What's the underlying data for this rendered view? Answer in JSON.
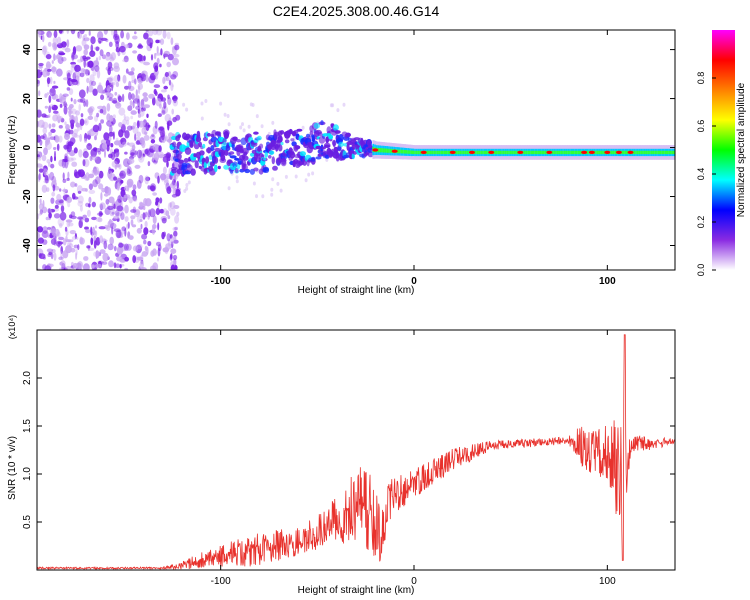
{
  "title": "C2E4.2025.308.00.46.G14",
  "chart_data": [
    {
      "type": "heatmap",
      "name": "spectrogram",
      "xlabel": "Height of straight line (km)",
      "ylabel": "Frequency (Hz)",
      "xlim": [
        -195,
        135
      ],
      "ylim": [
        -50,
        48
      ],
      "xticks": [
        -100,
        0,
        100
      ],
      "yticks": [
        -40,
        -20,
        0,
        20,
        40
      ],
      "colorbar": {
        "label": "Normalized spectral amplitude",
        "range": [
          0,
          1
        ],
        "ticks": [
          "0.0",
          "0.2",
          "0.4",
          "0.6",
          "0.8"
        ],
        "colors": [
          "#ffffff",
          "#8a2be2",
          "#0000ff",
          "#00ffff",
          "#00ff00",
          "#ffff00",
          "#ff8000",
          "#ff0000",
          "#ff00ff"
        ]
      },
      "signal": [
        {
          "x": -120,
          "center": -3,
          "width": 8
        },
        {
          "x": -100,
          "center": -2,
          "width": 8
        },
        {
          "x": -80,
          "center": -2,
          "width": 8
        },
        {
          "x": -60,
          "center": 0,
          "width": 7
        },
        {
          "x": -45,
          "center": 3,
          "width": 8
        },
        {
          "x": -35,
          "center": 1,
          "width": 5
        },
        {
          "x": -20,
          "center": -1,
          "width": 2
        },
        {
          "x": 0,
          "center": -2,
          "width": 1.5
        },
        {
          "x": 50,
          "center": -2,
          "width": 1.5
        },
        {
          "x": 100,
          "center": -2,
          "width": 1.5
        },
        {
          "x": 135,
          "center": -2,
          "width": 1.5
        }
      ]
    },
    {
      "type": "line",
      "name": "snr",
      "xlabel": "Height of straight line (km)",
      "ylabel": "SNR (10 * v/v)",
      "multiplier_label": "(x10⁴)",
      "xlim": [
        -195,
        135
      ],
      "ylim": [
        0,
        2.5
      ],
      "xticks": [
        -100,
        0,
        100
      ],
      "yticks": [
        "0.5",
        "1.0",
        "1.5",
        "2.0"
      ],
      "color": "#e8312c",
      "envelope": [
        {
          "x": -195,
          "base": 0.02,
          "amp": 0.01
        },
        {
          "x": -130,
          "base": 0.02,
          "amp": 0.01
        },
        {
          "x": -120,
          "base": 0.05,
          "amp": 0.05
        },
        {
          "x": -100,
          "base": 0.15,
          "amp": 0.12
        },
        {
          "x": -80,
          "base": 0.22,
          "amp": 0.18
        },
        {
          "x": -60,
          "base": 0.3,
          "amp": 0.15
        },
        {
          "x": -45,
          "base": 0.45,
          "amp": 0.2
        },
        {
          "x": -35,
          "base": 0.6,
          "amp": 0.35
        },
        {
          "x": -25,
          "base": 0.7,
          "amp": 0.45
        },
        {
          "x": -18,
          "base": 0.3,
          "amp": 0.4
        },
        {
          "x": -12,
          "base": 0.75,
          "amp": 0.2
        },
        {
          "x": 0,
          "base": 0.9,
          "amp": 0.15
        },
        {
          "x": 20,
          "base": 1.15,
          "amp": 0.12
        },
        {
          "x": 40,
          "base": 1.3,
          "amp": 0.05
        },
        {
          "x": 80,
          "base": 1.35,
          "amp": 0.04
        },
        {
          "x": 88,
          "base": 1.3,
          "amp": 0.25
        },
        {
          "x": 100,
          "base": 1.2,
          "amp": 0.3
        },
        {
          "x": 108,
          "base": 1.1,
          "amp": 0.8
        },
        {
          "x": 112,
          "base": 1.3,
          "amp": 0.1
        },
        {
          "x": 135,
          "base": 1.34,
          "amp": 0.03
        }
      ]
    }
  ]
}
